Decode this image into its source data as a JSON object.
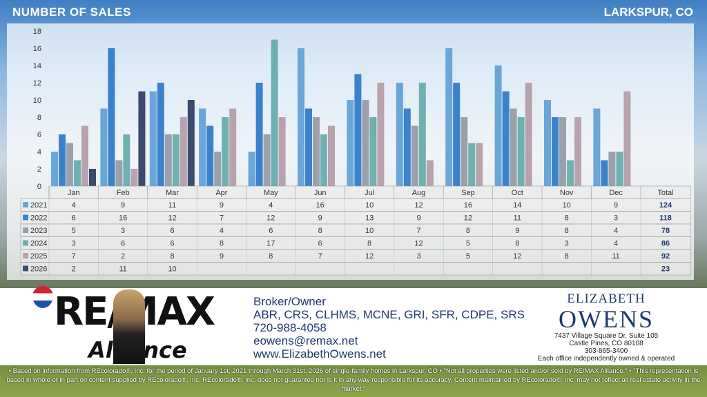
{
  "header": {
    "title": "NUMBER OF SALES",
    "location": "LARKSPUR, CO"
  },
  "chart_data": {
    "type": "bar",
    "categories": [
      "Jan",
      "Feb",
      "Mar",
      "Apr",
      "May",
      "Jun",
      "Jul",
      "Aug",
      "Sep",
      "Oct",
      "Nov",
      "Dec"
    ],
    "ylim": [
      0,
      18
    ],
    "yticks": [
      0,
      2,
      4,
      6,
      8,
      10,
      12,
      14,
      16,
      18
    ],
    "grid": false,
    "total_label": "Total",
    "series": [
      {
        "name": "2021",
        "color": "#6aa6d8",
        "values": [
          4,
          9,
          11,
          9,
          4,
          16,
          10,
          12,
          16,
          14,
          10,
          9
        ],
        "total": "124"
      },
      {
        "name": "2022",
        "color": "#3a82cc",
        "values": [
          6,
          16,
          12,
          7,
          12,
          9,
          13,
          9,
          12,
          11,
          8,
          3
        ],
        "total": "118"
      },
      {
        "name": "2023",
        "color": "#9aa0ac",
        "values": [
          5,
          3,
          6,
          4,
          6,
          8,
          10,
          7,
          8,
          9,
          8,
          4
        ],
        "total": "78"
      },
      {
        "name": "2024",
        "color": "#6fb0b0",
        "values": [
          3,
          6,
          6,
          8,
          17,
          6,
          8,
          12,
          5,
          8,
          3,
          4
        ],
        "total": "86"
      },
      {
        "name": "2025",
        "color": "#b7a2ae",
        "values": [
          7,
          2,
          8,
          9,
          8,
          7,
          12,
          3,
          5,
          12,
          8,
          11
        ],
        "total": "92"
      },
      {
        "name": "2026",
        "color": "#3c4a6e",
        "values": [
          2,
          11,
          10,
          null,
          null,
          null,
          null,
          null,
          null,
          null,
          null,
          null
        ],
        "total": "23"
      }
    ]
  },
  "logo": {
    "brand": "RE/MAX",
    "office": "Alliance"
  },
  "broker": {
    "title": "Broker/Owner",
    "designations": "ABR, CRS, CLHMS, MCNE, GRI, SFR, CDPE, SRS",
    "phone": "720-988-4058",
    "email": "eowens@remax.net",
    "website": "www.ElizabethOwens.net"
  },
  "office": {
    "first": "ELIZABETH",
    "last": "OWENS",
    "address1": "7437 Village Square Dr, Suite 105",
    "address2": "Castle Pines, CO 80108",
    "phone": "303-865-3400",
    "note": "Each office independently owned & operated"
  },
  "disclaimer": "• Based on information from REcolorado®, Inc. for the period of January 1st, 2021 through March 31st, 2026 of single-family homes in Larkspur, CO • \"Not all properties were listed and/or sold by RE/MAX Alliance.\" • \"This representation is based in whole or in part on content supplied by REcolorado®, Inc. REcolorado®, Inc. does not guarantee nor is it in any way responsible for its accuracy. Content maintained by REcolorado®, Inc. may not reflect all real estate activity in the market.\""
}
